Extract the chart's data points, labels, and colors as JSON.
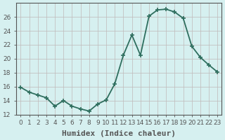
{
  "x": [
    0,
    1,
    2,
    3,
    4,
    5,
    6,
    7,
    8,
    9,
    10,
    11,
    12,
    13,
    14,
    15,
    16,
    17,
    18,
    19,
    20,
    21,
    22,
    23
  ],
  "y": [
    15.9,
    15.2,
    14.8,
    14.4,
    13.2,
    14.0,
    13.2,
    12.8,
    12.5,
    13.5,
    14.1,
    16.4,
    20.5,
    23.4,
    20.5,
    26.1,
    27.0,
    27.1,
    26.7,
    25.8,
    21.8,
    20.2,
    19.1,
    18.1
  ],
  "xlabel": "Humidex (Indice chaleur)",
  "ylabel": "",
  "ylim": [
    12,
    28
  ],
  "xlim": [
    -0.5,
    23.5
  ],
  "yticks": [
    12,
    14,
    16,
    18,
    20,
    22,
    24,
    26
  ],
  "xtick_labels": [
    "0",
    "1",
    "2",
    "3",
    "4",
    "5",
    "6",
    "7",
    "8",
    "9",
    "10",
    "11",
    "12",
    "13",
    "14",
    "15",
    "16",
    "17",
    "18",
    "19",
    "20",
    "21",
    "22",
    "23"
  ],
  "line_color": "#2e6e5e",
  "marker": "+",
  "marker_size": 5,
  "bg_color": "#d6f0f0",
  "grid_color": "#c0b8b8",
  "axis_color": "#555555",
  "xlabel_fontsize": 8,
  "tick_fontsize": 6.5,
  "line_width": 1.3
}
